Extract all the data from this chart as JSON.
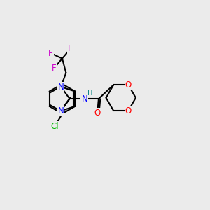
{
  "background_color": "#ebebeb",
  "atom_colors": {
    "C": "#000000",
    "N": "#0000ff",
    "O": "#ff0000",
    "F": "#cc00cc",
    "Cl": "#00bb00",
    "H": "#008080"
  }
}
